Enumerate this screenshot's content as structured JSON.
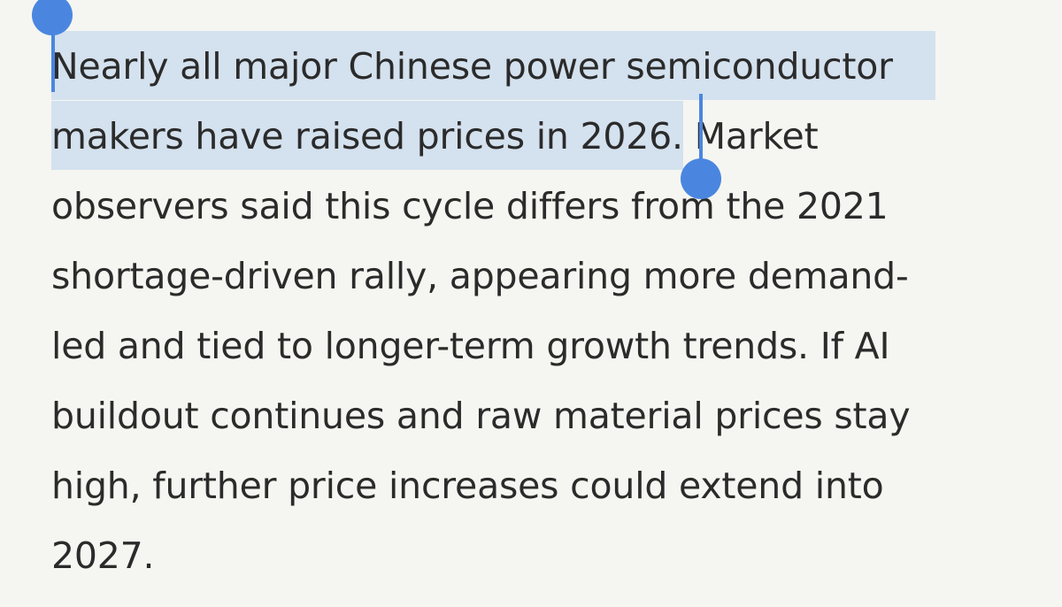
{
  "article": {
    "lines": [
      {
        "selected": "Nearly all major Chinese power semiconductor",
        "rest": ""
      },
      {
        "selected": "makers have raised prices in 2026.",
        "rest": " Market"
      },
      {
        "selected": "",
        "rest": "observers said this cycle differs from the 2021"
      },
      {
        "selected": "",
        "rest": "shortage-driven rally, appearing more demand-"
      },
      {
        "selected": "",
        "rest": "led and tied to longer-term growth trends. If AI"
      },
      {
        "selected": "",
        "rest": "buildout continues and raw material prices stay"
      },
      {
        "selected": "",
        "rest": "high, further price increases could extend into"
      },
      {
        "selected": "",
        "rest": "2027."
      }
    ]
  },
  "colors": {
    "background": "#f5f6f1",
    "text": "#2b2b2b",
    "selection_highlight": "#d4e1ee",
    "selection_handle": "#4a86e0"
  }
}
